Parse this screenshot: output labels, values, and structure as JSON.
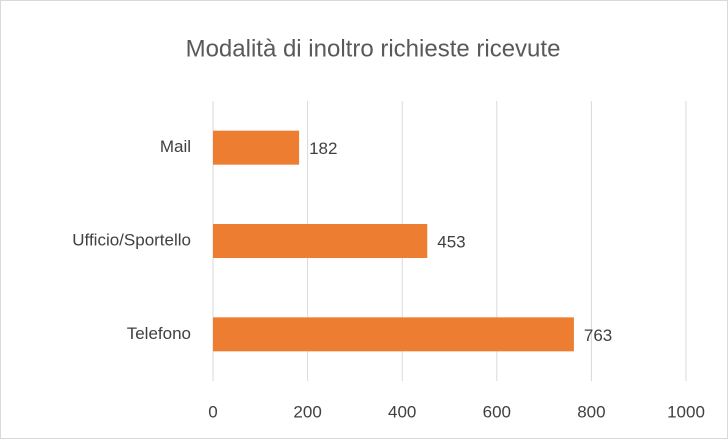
{
  "chart_data": {
    "type": "bar",
    "orientation": "horizontal",
    "title": "Modalità di inoltro richieste ricevute",
    "categories": [
      "Mail",
      "Ufficio/Sportello",
      "Telefono"
    ],
    "values": [
      182,
      453,
      763
    ],
    "color": "#ed7d31",
    "xlim": [
      0,
      1000
    ],
    "xticks": [
      0,
      200,
      400,
      600,
      800,
      1000
    ],
    "grid": true
  }
}
